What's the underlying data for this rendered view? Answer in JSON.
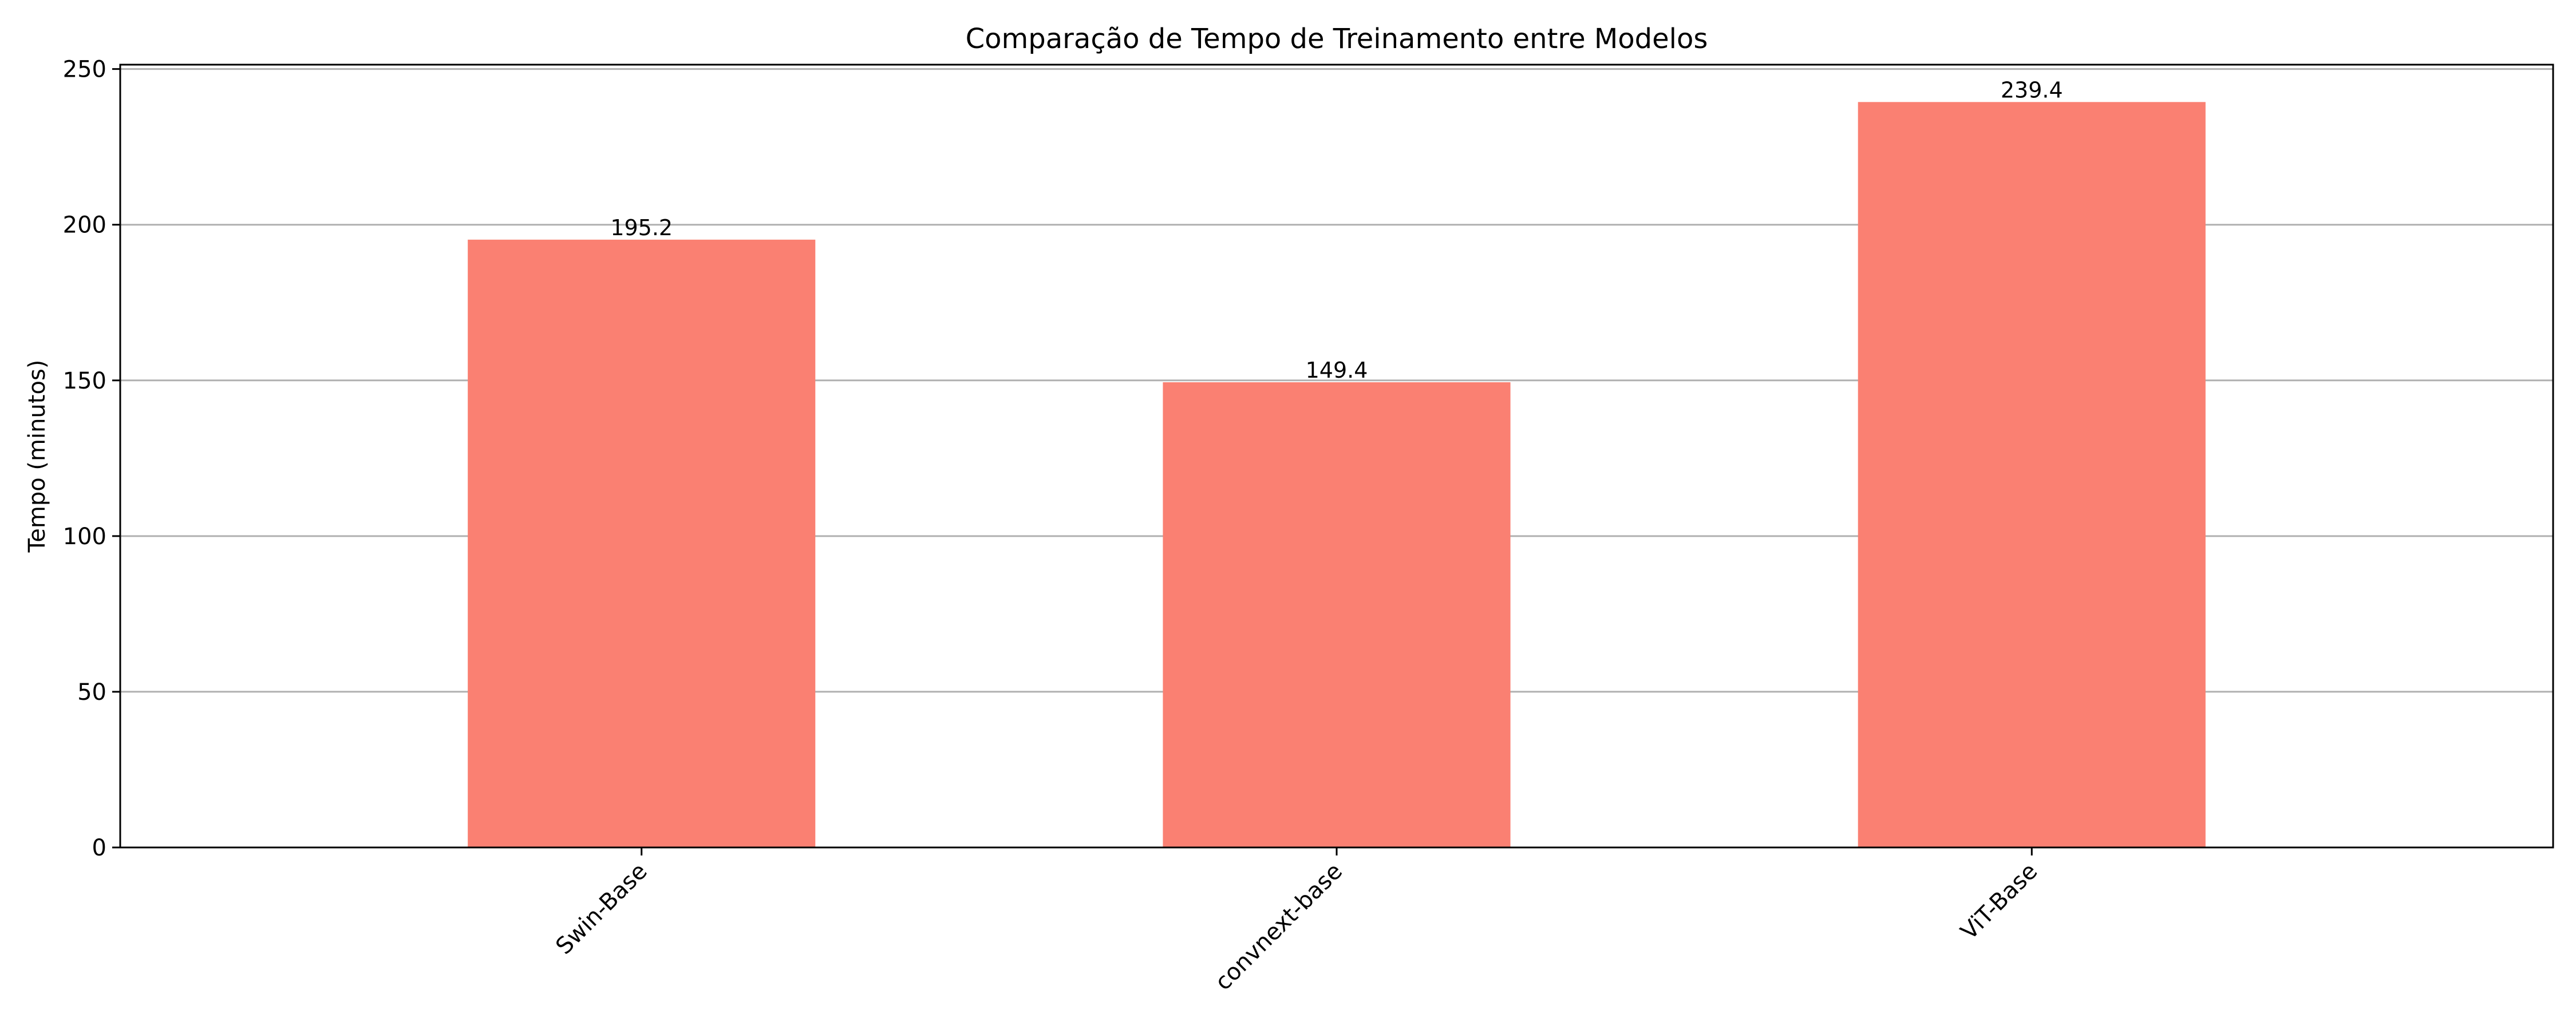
{
  "chart_data": {
    "type": "bar",
    "title": "Comparação de Tempo de Treinamento entre Modelos",
    "xlabel": "",
    "ylabel": "Tempo (minutos)",
    "categories": [
      "Swin-Base",
      "convnext-base",
      "ViT-Base"
    ],
    "values": [
      195.2,
      149.4,
      239.4
    ],
    "value_labels": [
      "195.2",
      "149.4",
      "239.4"
    ],
    "ylim": [
      0,
      251.4
    ],
    "yticks": [
      0,
      50,
      100,
      150,
      200,
      250
    ],
    "ytick_labels": [
      "0",
      "50",
      "100",
      "150",
      "200",
      "250"
    ],
    "grid": "y",
    "bar_color": "#fa8072",
    "xtick_rotation": 45
  }
}
